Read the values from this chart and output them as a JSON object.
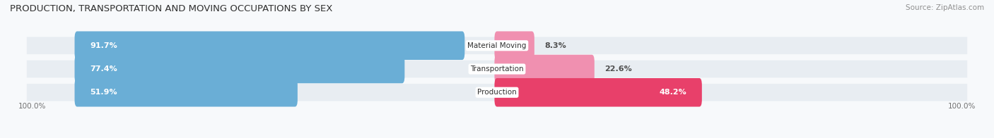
{
  "title": "PRODUCTION, TRANSPORTATION AND MOVING OCCUPATIONS BY SEX",
  "source": "Source: ZipAtlas.com",
  "categories": [
    "Material Moving",
    "Transportation",
    "Production"
  ],
  "male_values": [
    91.7,
    77.4,
    51.9
  ],
  "female_values": [
    8.3,
    22.6,
    48.2
  ],
  "male_color": "#6aaed6",
  "female_color": "#f090b0",
  "production_female_color": "#e8406a",
  "row_bg_color": "#e8edf2",
  "fig_bg_color": "#f7f9fb",
  "axis_label_left": "100.0%",
  "axis_label_right": "100.0%",
  "title_fontsize": 9.5,
  "source_fontsize": 7.5,
  "bar_height": 0.62,
  "figsize": [
    14.06,
    1.96
  ],
  "dpi": 100,
  "xlim_left": -8,
  "xlim_right": 108
}
